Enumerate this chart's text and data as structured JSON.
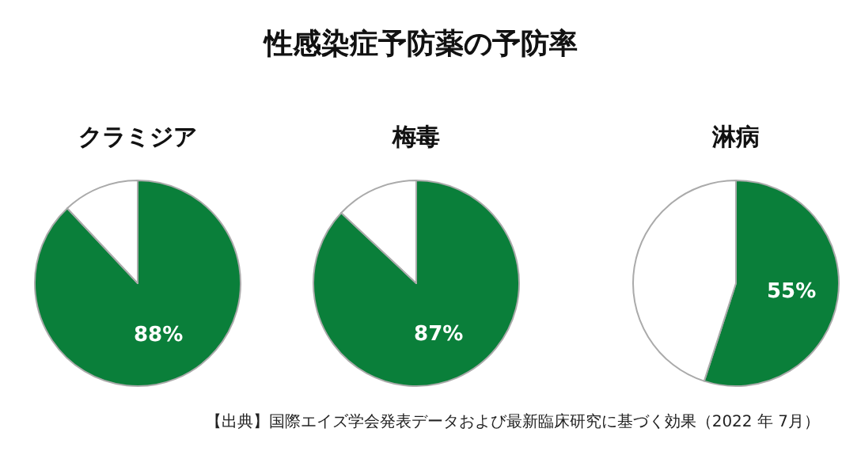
{
  "chart_data": [
    {
      "type": "other",
      "title": "性感染症予防薬の予防率",
      "annotations": [
        "【出典】国際エイズ学会発表データおよび最新臨床研究に基づく効果（2022 年 7月）"
      ]
    },
    {
      "type": "pie",
      "title": "クラミジア",
      "categories": [
        null,
        null
      ],
      "values": [
        88,
        12
      ],
      "colors": [
        "#0a7f3a",
        "#ffffff"
      ],
      "value_labels": [
        "88%",
        null
      ]
    },
    {
      "type": "pie",
      "title": "梅毒",
      "categories": [
        null,
        null
      ],
      "values": [
        87,
        13
      ],
      "colors": [
        "#0a7f3a",
        "#ffffff"
      ],
      "value_labels": [
        "87%",
        null
      ]
    },
    {
      "type": "pie",
      "title": "淋病",
      "categories": [
        null,
        null
      ],
      "values": [
        55,
        45
      ],
      "colors": [
        "#0a7f3a",
        "#ffffff"
      ],
      "value_labels": [
        "55%",
        null
      ]
    }
  ]
}
